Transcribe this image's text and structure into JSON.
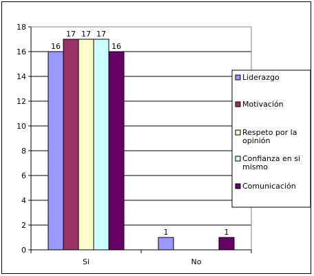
{
  "chart_data": {
    "type": "bar",
    "categories": [
      "Si",
      "No"
    ],
    "series": [
      {
        "name": "Liderazgo",
        "values": [
          16,
          1
        ],
        "color": "#9999ff"
      },
      {
        "name": "Motivación",
        "values": [
          17,
          0
        ],
        "color": "#993366"
      },
      {
        "name": "Respeto por la opinión",
        "values": [
          17,
          0
        ],
        "color": "#ffffcc"
      },
      {
        "name": "Confianza en si mismo",
        "values": [
          17,
          0
        ],
        "color": "#ccffff"
      },
      {
        "name": "Comunicación",
        "values": [
          16,
          1
        ],
        "color": "#660066"
      }
    ],
    "data_labels": [
      [
        "16",
        "1"
      ],
      [
        "17",
        ""
      ],
      [
        "17",
        ""
      ],
      [
        "17",
        ""
      ],
      [
        "16",
        "1"
      ]
    ],
    "legend_lines": [
      [
        "Liderazgo"
      ],
      [
        "Motivación"
      ],
      [
        "Respeto por la",
        "opinión"
      ],
      [
        "Confianza en si",
        "mismo"
      ],
      [
        "Comunicación"
      ]
    ],
    "yticks": [
      "0",
      "2",
      "4",
      "6",
      "8",
      "10",
      "12",
      "14",
      "16",
      "18"
    ],
    "ylim": [
      0,
      18
    ],
    "ytick_step": 2,
    "grid": true,
    "legend_position": "right",
    "plot_background": "#ffffff",
    "title": "",
    "xlabel": "",
    "ylabel": ""
  }
}
